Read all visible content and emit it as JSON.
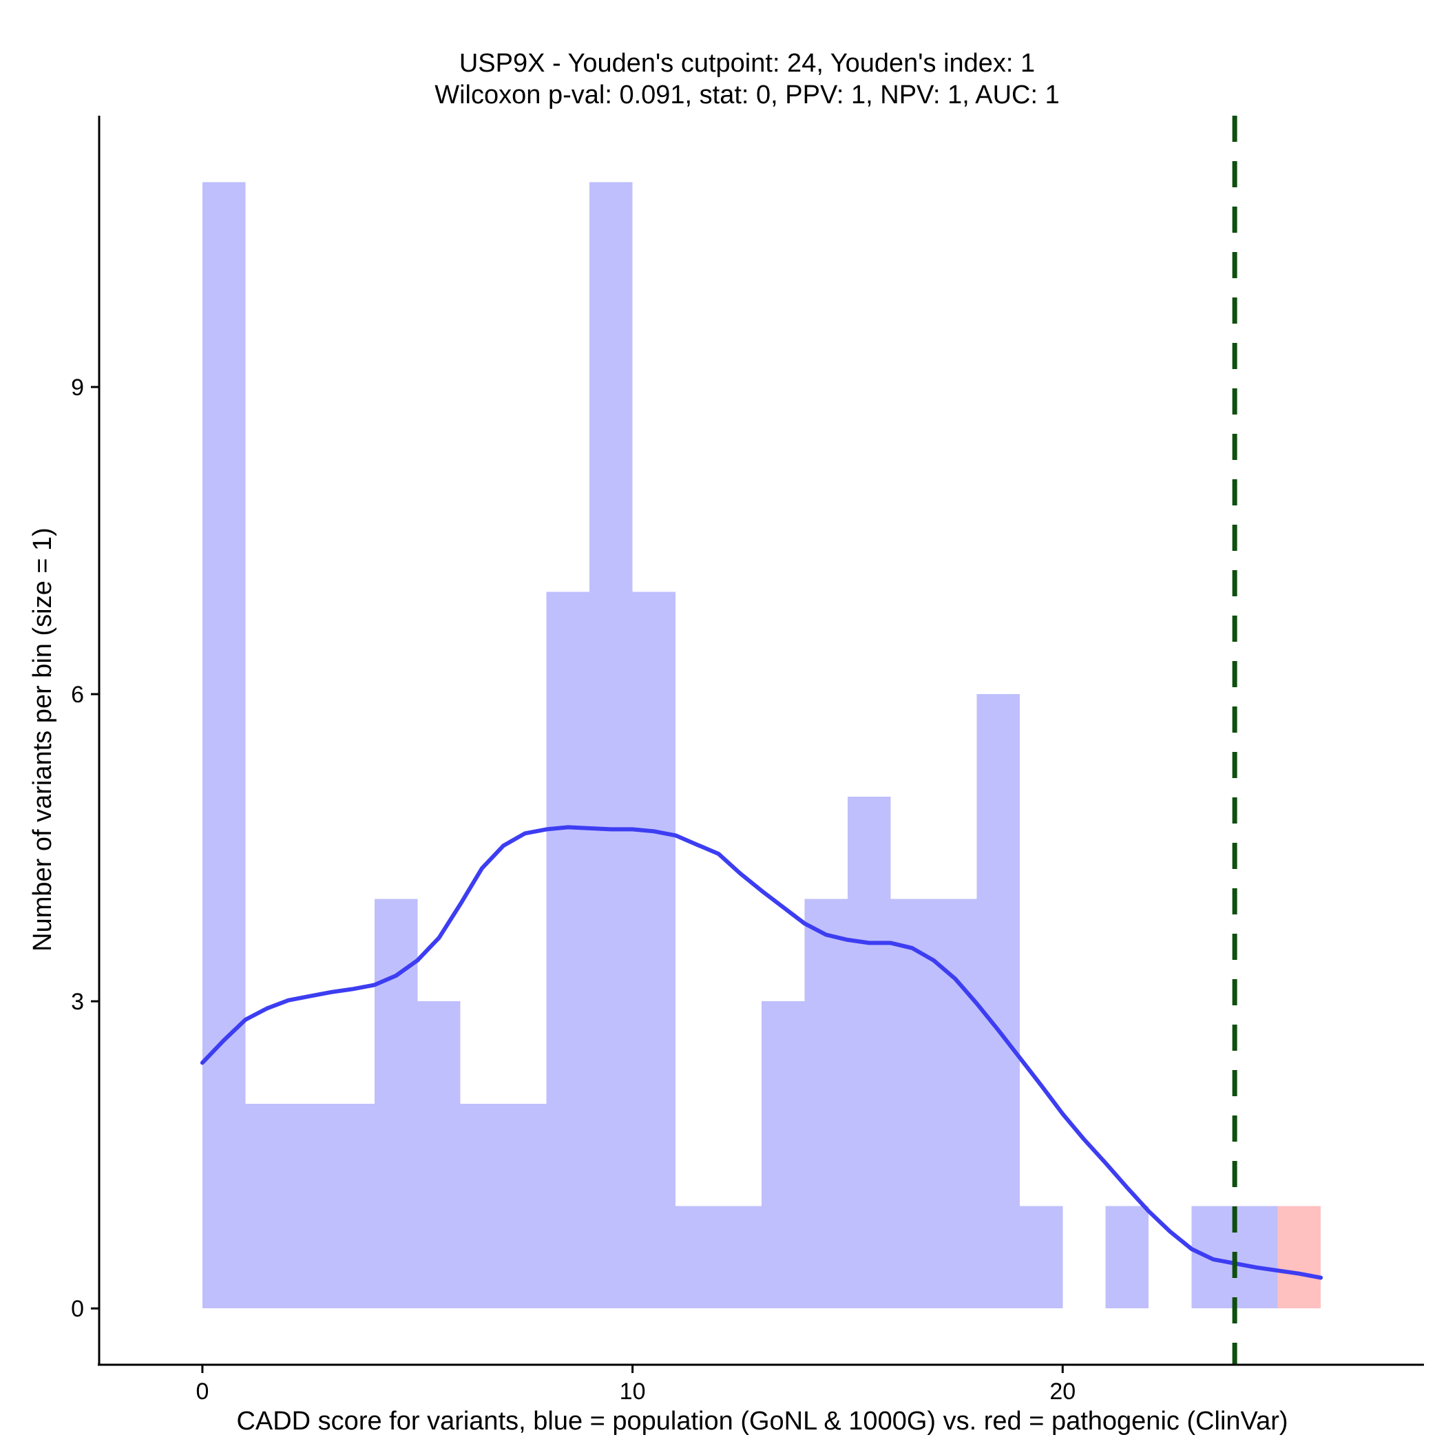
{
  "chart_data": {
    "type": "bar",
    "title": "USP9X - Youden's cutpoint: 24, Youden's index: 1",
    "subtitle": "Wilcoxon p-val: 0.091, stat: 0, PPV: 1, NPV: 1, AUC: 1",
    "xlabel": "CADD score for variants, blue = population (GoNL & 1000G) vs. red = pathogenic (ClinVar)",
    "ylabel": "Number of variants per bin (size = 1)",
    "xlim": [
      -2.4,
      28.4
    ],
    "ylim": [
      -0.55,
      11.65
    ],
    "x_ticks": [
      0,
      10,
      20
    ],
    "y_ticks": [
      0,
      3,
      6,
      9
    ],
    "grid": false,
    "bin_size": 1,
    "colors": {
      "population": "#bfbffd",
      "pathogenic": "#ffc0c0",
      "density": "#3d3df2",
      "cutpoint": "#0f4f0f"
    },
    "series": [
      {
        "name": "population",
        "bins": [
          {
            "start": 0,
            "count": 11
          },
          {
            "start": 1,
            "count": 2
          },
          {
            "start": 2,
            "count": 2
          },
          {
            "start": 3,
            "count": 2
          },
          {
            "start": 4,
            "count": 4
          },
          {
            "start": 5,
            "count": 3
          },
          {
            "start": 6,
            "count": 2
          },
          {
            "start": 7,
            "count": 2
          },
          {
            "start": 8,
            "count": 7
          },
          {
            "start": 9,
            "count": 11
          },
          {
            "start": 10,
            "count": 7
          },
          {
            "start": 11,
            "count": 1
          },
          {
            "start": 12,
            "count": 1
          },
          {
            "start": 13,
            "count": 3
          },
          {
            "start": 14,
            "count": 4
          },
          {
            "start": 15,
            "count": 5
          },
          {
            "start": 16,
            "count": 4
          },
          {
            "start": 17,
            "count": 4
          },
          {
            "start": 18,
            "count": 6
          },
          {
            "start": 19,
            "count": 1
          },
          {
            "start": 21,
            "count": 1
          },
          {
            "start": 23,
            "count": 1
          },
          {
            "start": 24,
            "count": 1
          }
        ]
      },
      {
        "name": "pathogenic",
        "bins": [
          {
            "start": 25,
            "count": 1
          }
        ]
      }
    ],
    "density_curve": {
      "x": [
        0,
        0.5,
        1,
        1.5,
        2,
        2.5,
        3,
        3.5,
        4,
        4.5,
        5,
        5.5,
        6,
        6.5,
        7,
        7.5,
        8,
        8.5,
        9,
        9.5,
        10,
        10.5,
        11,
        11.5,
        12,
        12.5,
        13,
        13.5,
        14,
        14.5,
        15,
        15.5,
        16,
        16.5,
        17,
        17.5,
        18,
        18.5,
        19,
        19.5,
        20,
        20.5,
        21,
        21.5,
        22,
        22.5,
        23,
        23.5,
        24,
        24.5,
        25,
        25.5,
        26
      ],
      "y": [
        2.4,
        2.62,
        2.82,
        2.93,
        3.01,
        3.05,
        3.09,
        3.12,
        3.16,
        3.25,
        3.4,
        3.62,
        3.95,
        4.3,
        4.52,
        4.64,
        4.68,
        4.7,
        4.69,
        4.68,
        4.68,
        4.66,
        4.62,
        4.53,
        4.44,
        4.25,
        4.08,
        3.92,
        3.76,
        3.65,
        3.6,
        3.57,
        3.57,
        3.52,
        3.4,
        3.22,
        2.98,
        2.72,
        2.45,
        2.18,
        1.9,
        1.65,
        1.42,
        1.18,
        0.95,
        0.75,
        0.58,
        0.48,
        0.44,
        0.4,
        0.37,
        0.34,
        0.3
      ]
    },
    "cutpoint": 24
  }
}
